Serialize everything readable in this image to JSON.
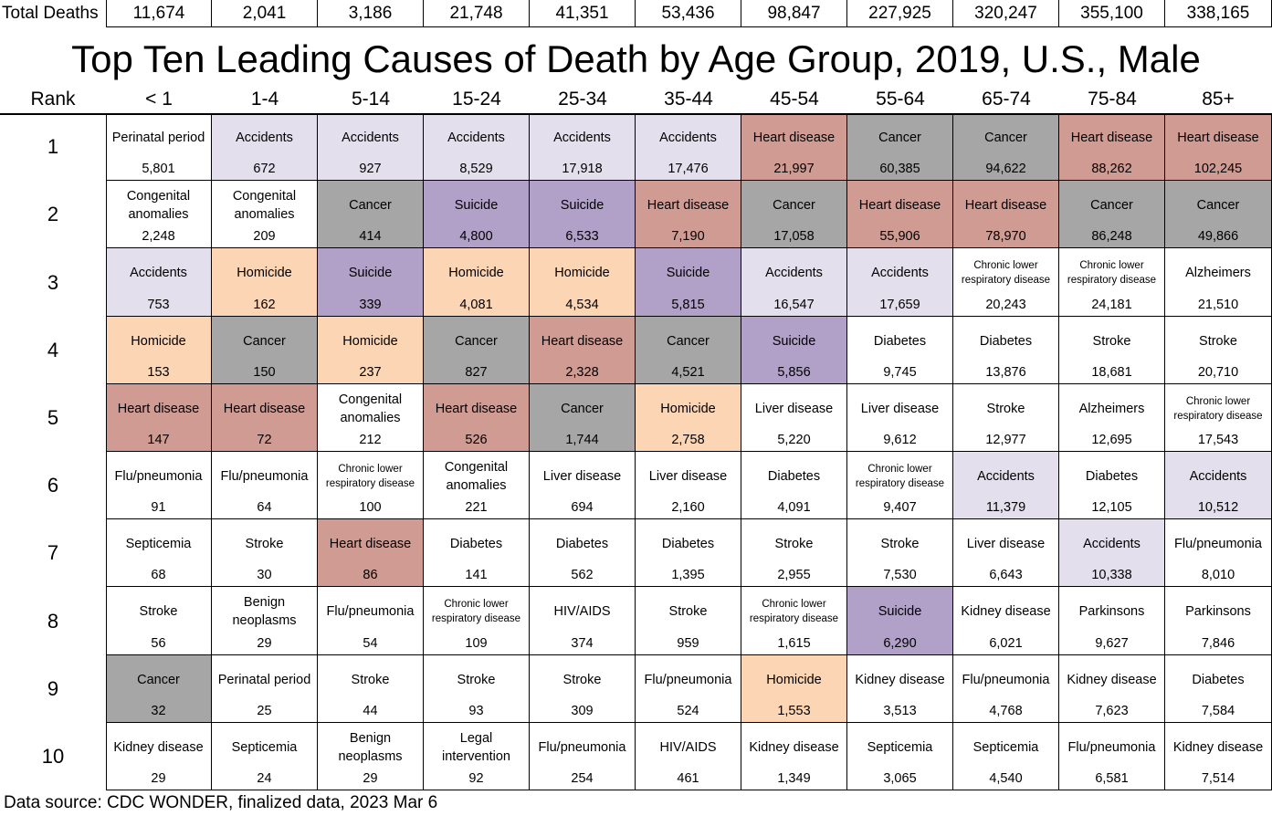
{
  "chart_data": {
    "type": "table",
    "title": "Top Ten Leading Causes of Death by Age Group, 2019, U.S., Male",
    "totals_label": "Total Deaths",
    "rank_label": "Rank",
    "age_groups": [
      "< 1",
      "1-4",
      "5-14",
      "15-24",
      "25-34",
      "35-44",
      "45-54",
      "55-64",
      "65-74",
      "75-84",
      "85+"
    ],
    "total_deaths": [
      "11,674",
      "2,041",
      "3,186",
      "21,748",
      "41,351",
      "53,436",
      "98,847",
      "227,925",
      "320,247",
      "355,100",
      "338,165"
    ],
    "ranks": [
      "1",
      "2",
      "3",
      "4",
      "5",
      "6",
      "7",
      "8",
      "9",
      "10"
    ],
    "cells": [
      [
        {
          "cause": "Perinatal period",
          "count": "5,801"
        },
        {
          "cause": "Accidents",
          "count": "672"
        },
        {
          "cause": "Accidents",
          "count": "927"
        },
        {
          "cause": "Accidents",
          "count": "8,529"
        },
        {
          "cause": "Accidents",
          "count": "17,918"
        },
        {
          "cause": "Accidents",
          "count": "17,476"
        },
        {
          "cause": "Heart disease",
          "count": "21,997"
        },
        {
          "cause": "Cancer",
          "count": "60,385"
        },
        {
          "cause": "Cancer",
          "count": "94,622"
        },
        {
          "cause": "Heart disease",
          "count": "88,262"
        },
        {
          "cause": "Heart disease",
          "count": "102,245"
        }
      ],
      [
        {
          "cause": "Congenital anomalies",
          "count": "2,248"
        },
        {
          "cause": "Congenital anomalies",
          "count": "209"
        },
        {
          "cause": "Cancer",
          "count": "414"
        },
        {
          "cause": "Suicide",
          "count": "4,800"
        },
        {
          "cause": "Suicide",
          "count": "6,533"
        },
        {
          "cause": "Heart disease",
          "count": "7,190"
        },
        {
          "cause": "Cancer",
          "count": "17,058"
        },
        {
          "cause": "Heart disease",
          "count": "55,906"
        },
        {
          "cause": "Heart disease",
          "count": "78,970"
        },
        {
          "cause": "Cancer",
          "count": "86,248"
        },
        {
          "cause": "Cancer",
          "count": "49,866"
        }
      ],
      [
        {
          "cause": "Accidents",
          "count": "753"
        },
        {
          "cause": "Homicide",
          "count": "162"
        },
        {
          "cause": "Suicide",
          "count": "339"
        },
        {
          "cause": "Homicide",
          "count": "4,081"
        },
        {
          "cause": "Homicide",
          "count": "4,534"
        },
        {
          "cause": "Suicide",
          "count": "5,815"
        },
        {
          "cause": "Accidents",
          "count": "16,547"
        },
        {
          "cause": "Accidents",
          "count": "17,659"
        },
        {
          "cause": "Chronic lower respiratory disease",
          "count": "20,243"
        },
        {
          "cause": "Chronic lower respiratory disease",
          "count": "24,181"
        },
        {
          "cause": "Alzheimers",
          "count": "21,510"
        }
      ],
      [
        {
          "cause": "Homicide",
          "count": "153"
        },
        {
          "cause": "Cancer",
          "count": "150"
        },
        {
          "cause": "Homicide",
          "count": "237"
        },
        {
          "cause": "Cancer",
          "count": "827"
        },
        {
          "cause": "Heart disease",
          "count": "2,328"
        },
        {
          "cause": "Cancer",
          "count": "4,521"
        },
        {
          "cause": "Suicide",
          "count": "5,856"
        },
        {
          "cause": "Diabetes",
          "count": "9,745"
        },
        {
          "cause": "Diabetes",
          "count": "13,876"
        },
        {
          "cause": "Stroke",
          "count": "18,681"
        },
        {
          "cause": "Stroke",
          "count": "20,710"
        }
      ],
      [
        {
          "cause": "Heart disease",
          "count": "147"
        },
        {
          "cause": "Heart disease",
          "count": "72"
        },
        {
          "cause": "Congenital anomalies",
          "count": "212"
        },
        {
          "cause": "Heart disease",
          "count": "526"
        },
        {
          "cause": "Cancer",
          "count": "1,744"
        },
        {
          "cause": "Homicide",
          "count": "2,758"
        },
        {
          "cause": "Liver disease",
          "count": "5,220"
        },
        {
          "cause": "Liver disease",
          "count": "9,612"
        },
        {
          "cause": "Stroke",
          "count": "12,977"
        },
        {
          "cause": "Alzheimers",
          "count": "12,695"
        },
        {
          "cause": "Chronic lower respiratory disease",
          "count": "17,543"
        }
      ],
      [
        {
          "cause": "Flu/pneumonia",
          "count": "91"
        },
        {
          "cause": "Flu/pneumonia",
          "count": "64"
        },
        {
          "cause": "Chronic lower respiratory disease",
          "count": "100"
        },
        {
          "cause": "Congenital anomalies",
          "count": "221"
        },
        {
          "cause": "Liver disease",
          "count": "694"
        },
        {
          "cause": "Liver disease",
          "count": "2,160"
        },
        {
          "cause": "Diabetes",
          "count": "4,091"
        },
        {
          "cause": "Chronic lower respiratory disease",
          "count": "9,407"
        },
        {
          "cause": "Accidents",
          "count": "11,379"
        },
        {
          "cause": "Diabetes",
          "count": "12,105"
        },
        {
          "cause": "Accidents",
          "count": "10,512"
        }
      ],
      [
        {
          "cause": "Septicemia",
          "count": "68"
        },
        {
          "cause": "Stroke",
          "count": "30"
        },
        {
          "cause": "Heart disease",
          "count": "86"
        },
        {
          "cause": "Diabetes",
          "count": "141"
        },
        {
          "cause": "Diabetes",
          "count": "562"
        },
        {
          "cause": "Diabetes",
          "count": "1,395"
        },
        {
          "cause": "Stroke",
          "count": "2,955"
        },
        {
          "cause": "Stroke",
          "count": "7,530"
        },
        {
          "cause": "Liver disease",
          "count": "6,643"
        },
        {
          "cause": "Accidents",
          "count": "10,338"
        },
        {
          "cause": "Flu/pneumonia",
          "count": "8,010"
        }
      ],
      [
        {
          "cause": "Stroke",
          "count": "56"
        },
        {
          "cause": "Benign neoplasms",
          "count": "29"
        },
        {
          "cause": "Flu/pneumonia",
          "count": "54"
        },
        {
          "cause": "Chronic lower respiratory disease",
          "count": "109"
        },
        {
          "cause": "HIV/AIDS",
          "count": "374"
        },
        {
          "cause": "Stroke",
          "count": "959"
        },
        {
          "cause": "Chronic lower respiratory disease",
          "count": "1,615"
        },
        {
          "cause": "Suicide",
          "count": "6,290"
        },
        {
          "cause": "Kidney disease",
          "count": "6,021"
        },
        {
          "cause": "Parkinsons",
          "count": "9,627"
        },
        {
          "cause": "Parkinsons",
          "count": "7,846"
        }
      ],
      [
        {
          "cause": "Cancer",
          "count": "32"
        },
        {
          "cause": "Perinatal period",
          "count": "25"
        },
        {
          "cause": "Stroke",
          "count": "44"
        },
        {
          "cause": "Stroke",
          "count": "93"
        },
        {
          "cause": "Stroke",
          "count": "309"
        },
        {
          "cause": "Flu/pneumonia",
          "count": "524"
        },
        {
          "cause": "Homicide",
          "count": "1,553"
        },
        {
          "cause": "Kidney disease",
          "count": "3,513"
        },
        {
          "cause": "Flu/pneumonia",
          "count": "4,768"
        },
        {
          "cause": "Kidney disease",
          "count": "7,623"
        },
        {
          "cause": "Diabetes",
          "count": "7,584"
        }
      ],
      [
        {
          "cause": "Kidney disease",
          "count": "29"
        },
        {
          "cause": "Septicemia",
          "count": "24"
        },
        {
          "cause": "Benign neoplasms",
          "count": "29"
        },
        {
          "cause": "Legal intervention",
          "count": "92"
        },
        {
          "cause": "Flu/pneumonia",
          "count": "254"
        },
        {
          "cause": "HIV/AIDS",
          "count": "461"
        },
        {
          "cause": "Kidney disease",
          "count": "1,349"
        },
        {
          "cause": "Septicemia",
          "count": "3,065"
        },
        {
          "cause": "Septicemia",
          "count": "4,540"
        },
        {
          "cause": "Flu/pneumonia",
          "count": "6,581"
        },
        {
          "cause": "Kidney disease",
          "count": "7,514"
        }
      ]
    ],
    "cause_colors": {
      "Accidents": "#e4dfec",
      "Heart disease": "#d09b92",
      "Cancer": "#a6a6a6",
      "Suicide": "#b1a0c7",
      "Homicide": "#fcd5b4"
    },
    "source": "Data source: CDC WONDER, finalized data, 2023 Mar 6"
  }
}
